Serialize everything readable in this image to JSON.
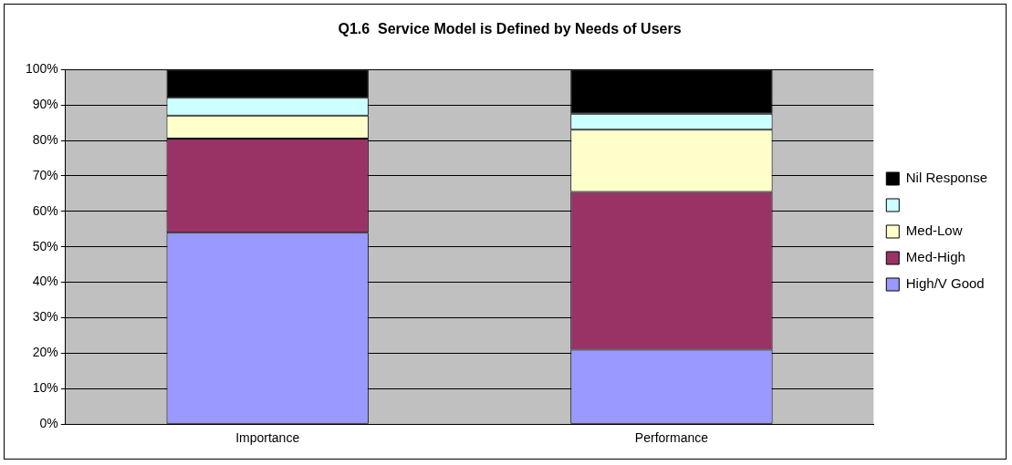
{
  "chart_data": {
    "type": "bar",
    "title": "Q1.6  Service Model is Defined by Needs of Users",
    "categories": [
      "Importance",
      "Performance"
    ],
    "stacked": true,
    "series": [
      {
        "name": "High/V Good",
        "color": "#9999ff",
        "values": [
          54,
          21
        ]
      },
      {
        "name": "Med-High",
        "color": "#993366",
        "values": [
          26.5,
          44.5
        ]
      },
      {
        "name": "Med-Low",
        "color": "#ffffcc",
        "values": [
          6.5,
          17.5
        ]
      },
      {
        "color": "#ccffff",
        "values": [
          5,
          4.5
        ]
      },
      {
        "name": "Nil Response",
        "color": "#000000",
        "values": [
          8,
          12.5
        ]
      }
    ],
    "ylim": [
      0,
      100
    ],
    "yticks": [
      {
        "value": 0,
        "label": "0%"
      },
      {
        "value": 10,
        "label": "10%"
      },
      {
        "value": 20,
        "label": "20%"
      },
      {
        "value": 30,
        "label": "30%"
      },
      {
        "value": 40,
        "label": "40%"
      },
      {
        "value": 50,
        "label": "50%"
      },
      {
        "value": 60,
        "label": "60%"
      },
      {
        "value": 70,
        "label": "70%"
      },
      {
        "value": 80,
        "label": "80%"
      },
      {
        "value": 90,
        "label": "90%"
      },
      {
        "value": 100,
        "label": "100%"
      }
    ],
    "grid": "y",
    "legend": "right"
  }
}
